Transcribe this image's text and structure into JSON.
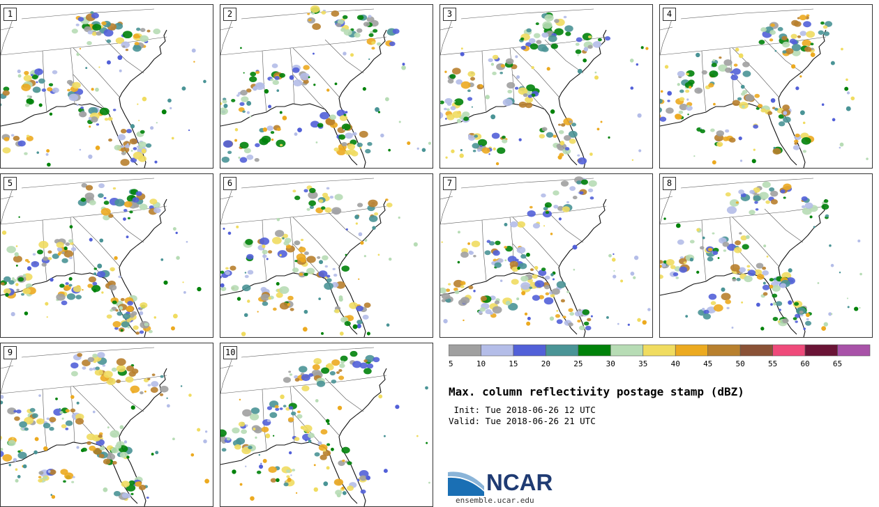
{
  "panels": [
    {
      "label": "1"
    },
    {
      "label": "2"
    },
    {
      "label": "3"
    },
    {
      "label": "4"
    },
    {
      "label": "5"
    },
    {
      "label": "6"
    },
    {
      "label": "7"
    },
    {
      "label": "8"
    },
    {
      "label": "9"
    },
    {
      "label": "10"
    }
  ],
  "legend": {
    "colors": [
      "#a0a0a0",
      "#b4bde8",
      "#5260d8",
      "#4a9496",
      "#00820a",
      "#b7dcb5",
      "#f0dc60",
      "#ecaa20",
      "#b8802e",
      "#8a5236",
      "#ef4a7a",
      "#6a1436",
      "#a852a8"
    ],
    "ticks": [
      "5",
      "10",
      "15",
      "20",
      "25",
      "30",
      "35",
      "40",
      "45",
      "50",
      "55",
      "60",
      "65"
    ]
  },
  "title": "Max. column reflectivity postage stamp (dBZ)",
  "init": " Init: Tue 2018-06-26 12 UTC",
  "valid": "Valid: Tue 2018-06-26 21 UTC",
  "logo": {
    "text": "NCAR",
    "url": "ensemble.ucar.edu",
    "colors": {
      "blue": "#1a6fb4",
      "dark": "#1f3b73"
    }
  }
}
